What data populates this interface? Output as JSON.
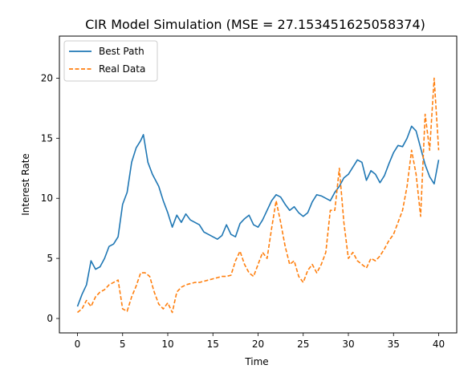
{
  "chart_data": {
    "type": "line",
    "title": "CIR Model Simulation (MSE = 27.153451625058374)",
    "xlabel": "Time",
    "ylabel": "Interest Rate",
    "xlim": [
      -2,
      42
    ],
    "ylim": [
      -1.2,
      23.5
    ],
    "xticks": [
      "0",
      "5",
      "10",
      "15",
      "20",
      "25",
      "30",
      "35",
      "40"
    ],
    "yticks": [
      "0",
      "5",
      "10",
      "15",
      "20"
    ],
    "grid": false,
    "legend_position": "top-left",
    "series": [
      {
        "name": "Best Path",
        "style": "solid",
        "color": "#1f77b4",
        "x": [
          0,
          0.5,
          1,
          1.5,
          2,
          2.5,
          3,
          3.5,
          4,
          4.5,
          5,
          5.5,
          6,
          6.5,
          7,
          7.3,
          7.8,
          8.3,
          9,
          9.5,
          10,
          10.5,
          11,
          11.5,
          12,
          12.5,
          13,
          13.5,
          14,
          14.5,
          15,
          15.5,
          16,
          16.5,
          17,
          17.5,
          18,
          18.5,
          19,
          19.5,
          20,
          20.5,
          21,
          21.5,
          22,
          22.5,
          23,
          23.5,
          24,
          24.5,
          25,
          25.5,
          26,
          26.5,
          27,
          27.5,
          28,
          28.5,
          29,
          29.5,
          30,
          30.5,
          31,
          31.5,
          32,
          32.5,
          33,
          33.5,
          34,
          34.5,
          35,
          35.5,
          36,
          36.5,
          37,
          37.5,
          38,
          38.5,
          39,
          39.5,
          40
        ],
        "values": [
          1.0,
          2.0,
          2.8,
          4.8,
          4.1,
          4.3,
          5.0,
          6.0,
          6.2,
          6.8,
          9.5,
          10.5,
          13.0,
          14.2,
          14.8,
          15.3,
          13.0,
          12.0,
          11.0,
          9.8,
          8.8,
          7.6,
          8.6,
          8.0,
          8.7,
          8.2,
          8.0,
          7.8,
          7.2,
          7.0,
          6.8,
          6.6,
          6.9,
          7.8,
          7.0,
          6.8,
          7.9,
          8.3,
          8.6,
          7.8,
          7.6,
          8.2,
          9.0,
          9.8,
          10.3,
          10.1,
          9.5,
          9.0,
          9.3,
          8.8,
          8.5,
          8.8,
          9.7,
          10.3,
          10.2,
          10.0,
          9.8,
          10.5,
          11.0,
          11.7,
          12.0,
          12.6,
          13.2,
          13.0,
          11.5,
          12.3,
          12.0,
          11.3,
          11.9,
          12.9,
          13.8,
          14.4,
          14.3,
          15.0,
          16.0,
          15.6,
          14.2,
          12.8,
          11.8,
          11.2,
          13.2
        ]
      },
      {
        "name": "Real Data",
        "style": "dashed",
        "color": "#ff7f0e",
        "x": [
          0,
          0.5,
          1,
          1.5,
          2,
          2.5,
          3,
          3.5,
          4,
          4.5,
          5,
          5.5,
          6,
          6.5,
          7,
          7.5,
          8,
          8.5,
          9,
          9.5,
          10,
          10.5,
          11,
          11.5,
          12,
          12.5,
          13,
          13.5,
          14,
          14.5,
          15,
          15.5,
          16,
          16.5,
          17,
          17.5,
          18,
          18.5,
          19,
          19.5,
          20,
          20.5,
          21,
          21.5,
          22,
          22.5,
          23,
          23.5,
          24,
          24.5,
          25,
          25.5,
          26,
          26.5,
          27,
          27.5,
          28,
          28.5,
          29,
          29.5,
          30,
          30.5,
          31,
          31.5,
          32,
          32.5,
          33,
          33.5,
          34,
          34.5,
          35,
          35.5,
          36,
          36.5,
          37,
          37.5,
          38,
          38.5,
          39,
          39.5,
          40
        ],
        "values": [
          0.5,
          0.8,
          1.5,
          1.0,
          1.8,
          2.2,
          2.4,
          2.8,
          3.0,
          3.2,
          0.8,
          0.6,
          1.8,
          2.7,
          3.8,
          3.8,
          3.5,
          2.2,
          1.2,
          0.8,
          1.3,
          0.5,
          2.2,
          2.6,
          2.8,
          2.9,
          3.0,
          3.0,
          3.1,
          3.2,
          3.3,
          3.4,
          3.5,
          3.5,
          3.6,
          4.8,
          5.6,
          4.5,
          3.8,
          3.5,
          4.5,
          5.5,
          5.0,
          7.5,
          9.8,
          8.0,
          6.0,
          4.5,
          4.8,
          3.5,
          3.0,
          4.0,
          4.5,
          3.8,
          4.5,
          5.5,
          9.0,
          9.0,
          12.5,
          8.0,
          5.0,
          5.5,
          4.8,
          4.5,
          4.2,
          5.0,
          4.8,
          5.2,
          5.8,
          6.5,
          7.0,
          8.0,
          9.0,
          11.0,
          14.0,
          12.0,
          8.5,
          17.0,
          14.0,
          20.0,
          14.0
        ]
      }
    ]
  }
}
